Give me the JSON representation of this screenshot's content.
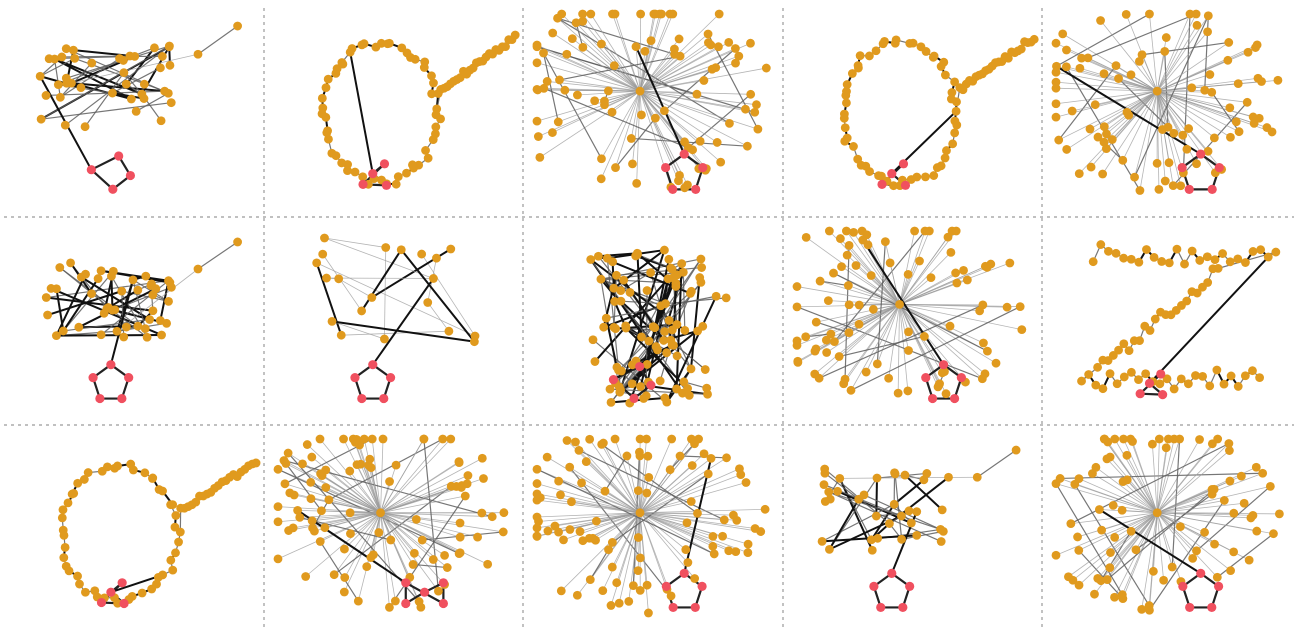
{
  "figure": {
    "grid": {
      "rows": 3,
      "cols": 5,
      "divider_style": "dotted"
    },
    "colors": {
      "node": "#E09A1E",
      "motif_node": "#F0505F",
      "edge_soft": "#9c9c9c",
      "edge_strong": "#111111"
    },
    "panels": [
      {
        "row": 0,
        "col": 0,
        "layout": "chain",
        "nodes": 40,
        "motif_nodes": 4,
        "motif_shape": "quad"
      },
      {
        "row": 0,
        "col": 1,
        "layout": "ring-chain",
        "nodes": 80,
        "motif_nodes": 4,
        "motif_shape": "cluster"
      },
      {
        "row": 0,
        "col": 2,
        "layout": "hub",
        "nodes": 95,
        "motif_nodes": 5,
        "motif_shape": "pentagon"
      },
      {
        "row": 0,
        "col": 3,
        "layout": "ring-chain",
        "nodes": 80,
        "motif_nodes": 4,
        "motif_shape": "cluster"
      },
      {
        "row": 0,
        "col": 4,
        "layout": "hub",
        "nodes": 90,
        "motif_nodes": 5,
        "motif_shape": "pentagon"
      },
      {
        "row": 1,
        "col": 0,
        "layout": "chain",
        "nodes": 45,
        "motif_nodes": 5,
        "motif_shape": "pentagon"
      },
      {
        "row": 1,
        "col": 1,
        "layout": "sparse",
        "nodes": 20,
        "motif_nodes": 5,
        "motif_shape": "pentagon"
      },
      {
        "row": 1,
        "col": 2,
        "layout": "dense",
        "nodes": 95,
        "motif_nodes": 4,
        "motif_shape": "quad"
      },
      {
        "row": 1,
        "col": 3,
        "layout": "hub",
        "nodes": 90,
        "motif_nodes": 5,
        "motif_shape": "pentagon"
      },
      {
        "row": 1,
        "col": 4,
        "layout": "zigzag",
        "nodes": 75,
        "motif_nodes": 5,
        "motif_shape": "cluster"
      },
      {
        "row": 2,
        "col": 0,
        "layout": "ring-chain",
        "nodes": 70,
        "motif_nodes": 4,
        "motif_shape": "cluster"
      },
      {
        "row": 2,
        "col": 1,
        "layout": "hub",
        "nodes": 100,
        "motif_nodes": 5,
        "motif_shape": "bowtie"
      },
      {
        "row": 2,
        "col": 2,
        "layout": "hub",
        "nodes": 100,
        "motif_nodes": 5,
        "motif_shape": "pentagon"
      },
      {
        "row": 2,
        "col": 3,
        "layout": "chain",
        "nodes": 35,
        "motif_nodes": 5,
        "motif_shape": "pentagon"
      },
      {
        "row": 2,
        "col": 4,
        "layout": "hub",
        "nodes": 85,
        "motif_nodes": 5,
        "motif_shape": "pentagon"
      }
    ]
  }
}
